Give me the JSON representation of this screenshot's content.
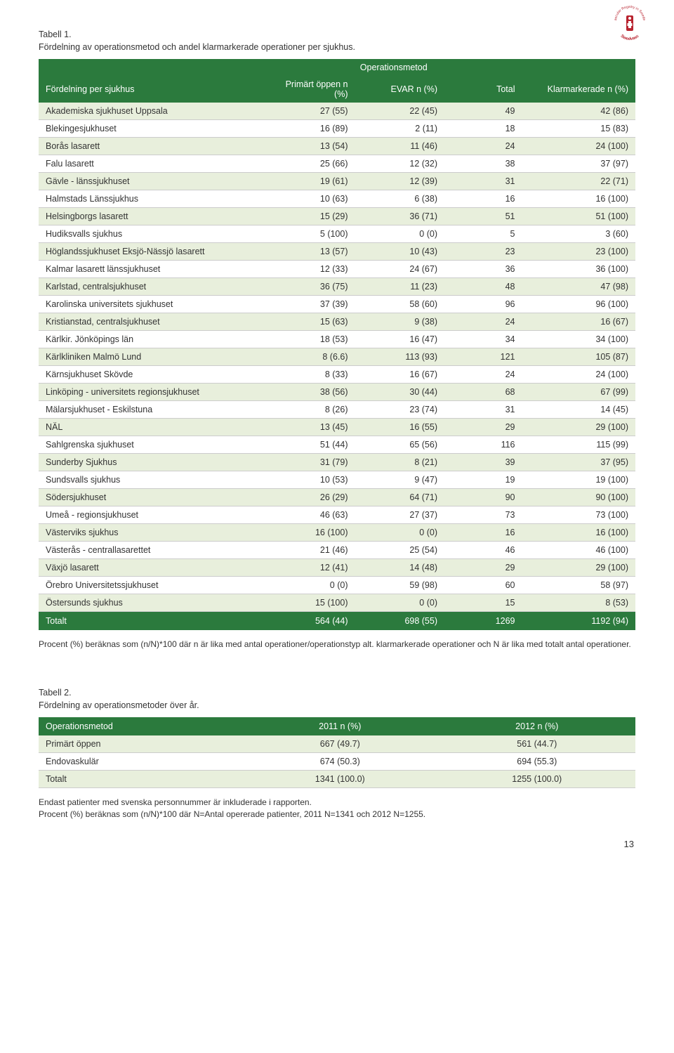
{
  "logo": {
    "top_text": "Vascular Registry in Sweden",
    "bottom_text": "Swedvasc"
  },
  "table1": {
    "caption_label": "Tabell 1.",
    "caption_text": "Fördelning av operationsmetod och andel klarmarkerade operationer per sjukhus.",
    "group_header": "Operationsmetod",
    "columns": {
      "c0": "Fördelning per sjukhus",
      "c1": "Primärt öppen n (%)",
      "c2": "EVAR n (%)",
      "c3": "Total",
      "c4": "Klarmarkerade n (%)"
    },
    "rows": [
      [
        "Akademiska sjukhuset Uppsala",
        "27 (55)",
        "22 (45)",
        "49",
        "42 (86)"
      ],
      [
        "Blekingesjukhuset",
        "16 (89)",
        "2 (11)",
        "18",
        "15 (83)"
      ],
      [
        "Borås lasarett",
        "13 (54)",
        "11 (46)",
        "24",
        "24 (100)"
      ],
      [
        "Falu lasarett",
        "25 (66)",
        "12 (32)",
        "38",
        "37 (97)"
      ],
      [
        "Gävle - länssjukhuset",
        "19 (61)",
        "12 (39)",
        "31",
        "22 (71)"
      ],
      [
        "Halmstads Länssjukhus",
        "10 (63)",
        "6 (38)",
        "16",
        "16 (100)"
      ],
      [
        "Helsingborgs lasarett",
        "15 (29)",
        "36 (71)",
        "51",
        "51 (100)"
      ],
      [
        "Hudiksvalls sjukhus",
        "5 (100)",
        "0 (0)",
        "5",
        "3 (60)"
      ],
      [
        "Höglandssjukhuset Eksjö-Nässjö lasarett",
        "13 (57)",
        "10 (43)",
        "23",
        "23 (100)"
      ],
      [
        "Kalmar lasarett länssjukhuset",
        "12 (33)",
        "24 (67)",
        "36",
        "36 (100)"
      ],
      [
        "Karlstad, centralsjukhuset",
        "36 (75)",
        "11 (23)",
        "48",
        "47 (98)"
      ],
      [
        "Karolinska universitets sjukhuset",
        "37 (39)",
        "58 (60)",
        "96",
        "96 (100)"
      ],
      [
        "Kristianstad, centralsjukhuset",
        "15 (63)",
        "9 (38)",
        "24",
        "16 (67)"
      ],
      [
        "Kärlkir. Jönköpings län",
        "18 (53)",
        "16 (47)",
        "34",
        "34 (100)"
      ],
      [
        "Kärlkliniken Malmö Lund",
        "8 (6.6)",
        "113 (93)",
        "121",
        "105 (87)"
      ],
      [
        "Kärnsjukhuset Skövde",
        "8 (33)",
        "16 (67)",
        "24",
        "24 (100)"
      ],
      [
        "Linköping - universitets regionsjukhuset",
        "38 (56)",
        "30 (44)",
        "68",
        "67 (99)"
      ],
      [
        "Mälarsjukhuset - Eskilstuna",
        "8 (26)",
        "23 (74)",
        "31",
        "14 (45)"
      ],
      [
        "NÄL",
        "13 (45)",
        "16 (55)",
        "29",
        "29 (100)"
      ],
      [
        "Sahlgrenska sjukhuset",
        "51 (44)",
        "65 (56)",
        "116",
        "115 (99)"
      ],
      [
        "Sunderby Sjukhus",
        "31 (79)",
        "8 (21)",
        "39",
        "37 (95)"
      ],
      [
        "Sundsvalls sjukhus",
        "10 (53)",
        "9 (47)",
        "19",
        "19 (100)"
      ],
      [
        "Södersjukhuset",
        "26 (29)",
        "64 (71)",
        "90",
        "90 (100)"
      ],
      [
        "Umeå - regionsjukhuset",
        "46 (63)",
        "27 (37)",
        "73",
        "73 (100)"
      ],
      [
        "Västerviks sjukhus",
        "16 (100)",
        "0 (0)",
        "16",
        "16 (100)"
      ],
      [
        "Västerås - centrallasarettet",
        "21 (46)",
        "25 (54)",
        "46",
        "46 (100)"
      ],
      [
        "Växjö lasarett",
        "12 (41)",
        "14 (48)",
        "29",
        "29 (100)"
      ],
      [
        "Örebro Universitetssjukhuset",
        "0 (0)",
        "59 (98)",
        "60",
        "58 (97)"
      ],
      [
        "Östersunds sjukhus",
        "15 (100)",
        "0 (0)",
        "15",
        "8 (53)"
      ]
    ],
    "total_row": [
      "Totalt",
      "564 (44)",
      "698 (55)",
      "1269",
      "1192 (94)"
    ],
    "footnote": "Procent (%) beräknas som (n/N)*100 där n är lika med antal operationer/operationstyp alt. klarmarkerade operationer och N är lika med totalt antal operationer.",
    "col_widths": [
      "38%",
      "15%",
      "15%",
      "13%",
      "19%"
    ]
  },
  "table2": {
    "caption_label": "Tabell 2.",
    "caption_text": "Fördelning av operationsmetoder över år.",
    "columns": {
      "c0": "Operationsmetod",
      "c1": "2011 n (%)",
      "c2": "2012 n (%)"
    },
    "rows": [
      [
        "Primärt öppen",
        "667 (49.7)",
        "561 (44.7)"
      ],
      [
        "Endovaskulär",
        "674 (50.3)",
        "694 (55.3)"
      ],
      [
        "Totalt",
        "1341 (100.0)",
        "1255 (100.0)"
      ]
    ],
    "footnote": "Endast patienter med svenska personnummer är inkluderade i rapporten.\nProcent (%) beräknas som (n/N)*100 där N=Antal opererade patienter, 2011 N=1341 och 2012 N=1255.",
    "col_widths": [
      "34%",
      "33%",
      "33%"
    ]
  },
  "page_number": "13",
  "colors": {
    "header_bg": "#2b7a3d",
    "row_alt_bg": "#e8efdc",
    "logo_red": "#b8232f"
  }
}
